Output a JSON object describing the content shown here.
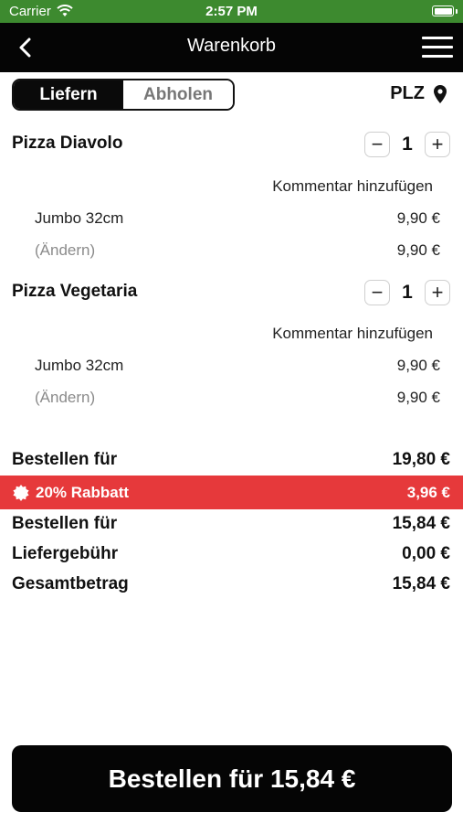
{
  "status_bar": {
    "carrier": "Carrier",
    "time": "2:57 PM"
  },
  "nav": {
    "title": "Warenkorb"
  },
  "delivery_mode": {
    "options": [
      "Liefern",
      "Abholen"
    ],
    "selected": "Liefern"
  },
  "plz_label": "PLZ",
  "items": [
    {
      "name": "Pizza Diavolo",
      "quantity": "1",
      "comment_label": "Kommentar hinzufügen",
      "size": "Jumbo 32cm",
      "size_price": "9,90 €",
      "change_label": "(Ändern)",
      "total": "9,90 €"
    },
    {
      "name": "Pizza Vegetaria",
      "quantity": "1",
      "comment_label": "Kommentar hinzufügen",
      "size": "Jumbo 32cm",
      "size_price": "9,90 €",
      "change_label": "(Ändern)",
      "total": "9,90 €"
    }
  ],
  "summary": {
    "subtotal_label": "Bestellen für",
    "subtotal_value": "19,80 €",
    "discount_label": "20% Rabbatt",
    "discount_value": "3,96 €",
    "after_discount_label": "Bestellen für",
    "after_discount_value": "15,84 €",
    "delivery_fee_label": "Liefergebühr",
    "delivery_fee_value": "0,00 €",
    "total_label": "Gesamtbetrag",
    "total_value": "15,84 €"
  },
  "order_button": {
    "label": "Bestellen für 15,84 €"
  },
  "colors": {
    "status_bar": "#3d8a2f",
    "nav_bar": "#050505",
    "discount": "#e6393b"
  }
}
